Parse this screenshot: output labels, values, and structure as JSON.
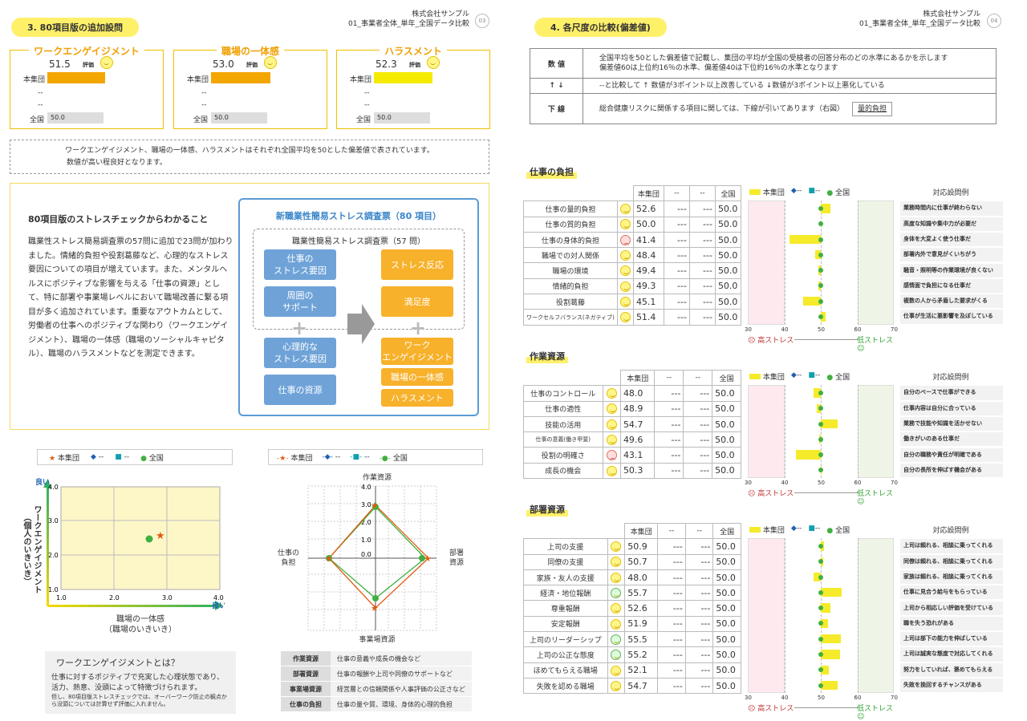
{
  "left": {
    "header_pill": "3. 80項目版の追加設問",
    "company": "株式会社サンプル",
    "doc": "01_事業者全体_単年_全国データ比較",
    "page": "03",
    "metrics": [
      {
        "title": "ワークエンゲイジメント",
        "value": "51.5",
        "hyoka": "評価",
        "row1": "本集団",
        "dash": "--",
        "zenkoku": "全国",
        "zk_val": "50.0",
        "bar_color": "#f3a500",
        "bar_frac": 0.515
      },
      {
        "title": "職場の一体感",
        "value": "53.0",
        "hyoka": "評価",
        "row1": "本集団",
        "dash": "--",
        "zenkoku": "全国",
        "zk_val": "50.0",
        "bar_color": "#f3a500",
        "bar_frac": 0.53
      },
      {
        "title": "ハラスメント",
        "value": "52.3",
        "hyoka": "評価",
        "row1": "本集団",
        "dash": "--",
        "zenkoku": "全国",
        "zk_val": "50.0",
        "bar_color": "#f5eb00",
        "bar_frac": 0.523
      }
    ],
    "note1": "ワークエンゲイジメント、職場の一体感、ハラスメントはそれぞれ全国平均を50とした偏差値で表されています。",
    "note2": "数値が高い程良好となります。",
    "info_title": "80項目版のストレスチェックからわかること",
    "info_body": "職業性ストレス簡易調査票の57問に追加で23問が加わりました。情緒的負担や役割葛藤など、心理的なストレス要因についての項目が増えています。また、メンタルヘルスにポジティブな影響を与える「仕事の資源」として、特に部署や事業場レベルにおいて職場改善に繋る項目が多く追加されています。重要なアウトカムとして、労働者の仕事へのポジティブな関わり（ワークエンゲイジメント）、職場の一体感（職場のソーシャルキャピタル）、職場のハラスメントなどを測定できます。",
    "diagram": {
      "title": "新職業性簡易ストレス調査票（80 項目）",
      "inner_title": "職業性簡易ストレス調査票（57 問）",
      "b1": "仕事の\nストレス要因",
      "b2": "周囲の\nサポート",
      "o1": "ストレス反応",
      "o2": "満足度",
      "b3": "心理的な\nストレス要因",
      "b4": "仕事の資源",
      "o3": "ワーク\nエンゲイジメント",
      "o4": "職場の一体感",
      "o5": "ハラスメント"
    },
    "scatter": {
      "legend": [
        "本集団",
        "--",
        "--",
        "全国"
      ],
      "y_title": "ワークエンゲイジメント\n（個人のいきいき）",
      "x_title": "職場の一体感\n（職場のいきいき）",
      "good": "良い",
      "ticks": [
        "1.0",
        "2.0",
        "3.0",
        "4.0"
      ]
    },
    "radar": {
      "legend": [
        "本集団",
        "--",
        "--",
        "全国"
      ],
      "top": "作業資源",
      "right": "部署\n資源",
      "bottom": "事業場資源",
      "left": "仕事の\n負担",
      "ticks": [
        "4.0",
        "3.0",
        "2.0",
        "1.0",
        "0.0"
      ]
    },
    "we_box": {
      "title": "ワークエンゲイジメントとは？",
      "body": "仕事に対するポジティブで充実した心理状態であり、活力、熱意、没頭によって特徴づけられます。",
      "note": "但し、80項目版ストレスチェックでは、オーバーワーク防止の観点から没頭については計算せず評価に入れません。"
    },
    "res_table": [
      {
        "k": "作業資源",
        "v": "仕事の意義や成長の機会など"
      },
      {
        "k": "部署資源",
        "v": "仕事の報酬や上司や同僚のサポートなど"
      },
      {
        "k": "事業場資源",
        "v": "経営層との信頼関係や人事評価の公正さなど"
      },
      {
        "k": "仕事の負担",
        "v": "仕事の量や質、環境、身体的心理的負担"
      }
    ]
  },
  "right": {
    "header_pill": "4. 各尺度の比較(偏差値)",
    "company": "株式会社サンプル",
    "doc": "01_事業者全体_単年_全国データ比較",
    "page": "04",
    "explain": [
      {
        "k": "数 値",
        "v": "全国平均を50とした偏差値で記載し、集団の平均が全国の受検者の回答分布のどの水準にあるかを示します\n偏差値60は上位約16％の水準、偏差値40は下位約16％の水準となります"
      },
      {
        "k": "↑ ↓",
        "v": "--と比較して ↑ 数値が3ポイント以上改善している ↓数値が3ポイント以上悪化している"
      },
      {
        "k": "下 線",
        "v": "総合健康リスクに関係する項目に関しては、下線が引いてあります（右図）"
      }
    ],
    "underline_example": "量的負担",
    "col_headers": [
      "本集団",
      "--",
      "--",
      "全国"
    ],
    "legend": [
      "本集団",
      "--",
      "--",
      "全国"
    ],
    "taio": "対応設問例",
    "axis": [
      "30",
      "40",
      "50",
      "60",
      "70"
    ],
    "high_stress": "高ストレス",
    "low_stress": "低ストレス",
    "sections": [
      {
        "title": "仕事の負担",
        "rows": [
          {
            "name": "仕事の量的負担",
            "face": "smile",
            "v": "52.6",
            "d1": "---",
            "d2": "---",
            "z": "50.0",
            "ex": "業務時間内に仕事が終わらない"
          },
          {
            "name": "仕事の質的負担",
            "face": "smile",
            "v": "50.0",
            "d1": "---",
            "d2": "---",
            "z": "50.0",
            "ex": "高度な知識や集中力が必要だ"
          },
          {
            "name": "仕事の身体的負担",
            "face": "sad",
            "v": "41.4",
            "d1": "---",
            "d2": "---",
            "z": "50.0",
            "ex": "身体を大変よく使う仕事だ"
          },
          {
            "name": "職場での対人関係",
            "face": "smile",
            "v": "48.4",
            "d1": "---",
            "d2": "---",
            "z": "50.0",
            "ex": "部署内外で意見がくいちがう"
          },
          {
            "name": "職場の環境",
            "face": "smile",
            "v": "49.4",
            "d1": "---",
            "d2": "---",
            "z": "50.0",
            "ex": "騒音・照明等の作業環境が良くない"
          },
          {
            "name": "情緒的負担",
            "face": "smile",
            "v": "49.3",
            "d1": "---",
            "d2": "---",
            "z": "50.0",
            "ex": "感情面で負担になる仕事だ"
          },
          {
            "name": "役割葛藤",
            "face": "smile",
            "v": "45.1",
            "d1": "---",
            "d2": "---",
            "z": "50.0",
            "ex": "複数の人から矛盾した要求がくる"
          },
          {
            "name": "ワークセルフバランス(ネガティブ)",
            "face": "smile",
            "v": "51.4",
            "d1": "---",
            "d2": "---",
            "z": "50.0",
            "ex": "仕事が生活に悪影響を及ぼしている"
          }
        ]
      },
      {
        "title": "作業資源",
        "rows": [
          {
            "name": "仕事のコントロール",
            "face": "smile",
            "v": "48.0",
            "d1": "---",
            "d2": "---",
            "z": "50.0",
            "ex": "自分のペースで仕事ができる"
          },
          {
            "name": "仕事の適性",
            "face": "smile",
            "v": "48.9",
            "d1": "---",
            "d2": "---",
            "z": "50.0",
            "ex": "仕事内容は自分に合っている"
          },
          {
            "name": "技能の活用",
            "face": "smile",
            "v": "54.7",
            "d1": "---",
            "d2": "---",
            "z": "50.0",
            "ex": "業務で技能や知識を活かせない"
          },
          {
            "name": "仕事の意義(働き甲斐)",
            "face": "smile",
            "v": "49.6",
            "d1": "---",
            "d2": "---",
            "z": "50.0",
            "ex": "働きがいのある仕事だ"
          },
          {
            "name": "役割の明確さ",
            "face": "sad",
            "v": "43.1",
            "d1": "---",
            "d2": "---",
            "z": "50.0",
            "ex": "自分の職務や責任が明確である"
          },
          {
            "name": "成長の機会",
            "face": "smile",
            "v": "50.3",
            "d1": "---",
            "d2": "---",
            "z": "50.0",
            "ex": "自分の長所を伸ばす機会がある"
          }
        ]
      },
      {
        "title": "部署資源",
        "rows": [
          {
            "name": "上司の支援",
            "face": "smile",
            "v": "50.9",
            "d1": "---",
            "d2": "---",
            "z": "50.0",
            "ex": "上司は頼れる、相談に乗ってくれる"
          },
          {
            "name": "同僚の支援",
            "face": "smile",
            "v": "50.7",
            "d1": "---",
            "d2": "---",
            "z": "50.0",
            "ex": "同僚は頼れる、相談に乗ってくれる"
          },
          {
            "name": "家族・友人の支援",
            "face": "smile",
            "v": "48.0",
            "d1": "---",
            "d2": "---",
            "z": "50.0",
            "ex": "家族は頼れる、相談に乗ってくれる"
          },
          {
            "name": "経済・地位報酬",
            "face": "grn",
            "v": "55.7",
            "d1": "---",
            "d2": "---",
            "z": "50.0",
            "ex": "仕事に見合う給与をもらっている"
          },
          {
            "name": "尊重報酬",
            "face": "smile",
            "v": "52.6",
            "d1": "---",
            "d2": "---",
            "z": "50.0",
            "ex": "上司から相応しい評価を受けている"
          },
          {
            "name": "安定報酬",
            "face": "smile",
            "v": "51.9",
            "d1": "---",
            "d2": "---",
            "z": "50.0",
            "ex": "職を失う恐れがある"
          },
          {
            "name": "上司のリーダーシップ",
            "face": "grn",
            "v": "55.5",
            "d1": "---",
            "d2": "---",
            "z": "50.0",
            "ex": "上司は部下の能力を伸ばしている"
          },
          {
            "name": "上司の公正な態度",
            "face": "grn",
            "v": "55.2",
            "d1": "---",
            "d2": "---",
            "z": "50.0",
            "ex": "上司は誠実な態度で対応してくれる"
          },
          {
            "name": "ほめてもらえる職場",
            "face": "smile",
            "v": "52.1",
            "d1": "---",
            "d2": "---",
            "z": "50.0",
            "ex": "努力をしていれば、褒めてもらえる"
          },
          {
            "name": "失敗を認める職場",
            "face": "smile",
            "v": "54.7",
            "d1": "---",
            "d2": "---",
            "z": "50.0",
            "ex": "失敗を挽回するチャンスがある"
          }
        ]
      }
    ]
  }
}
